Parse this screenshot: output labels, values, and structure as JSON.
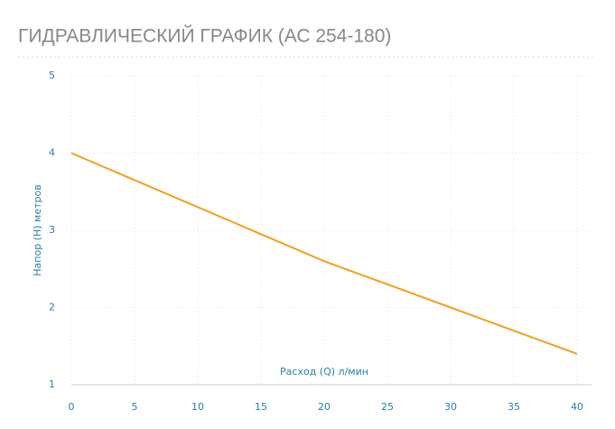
{
  "chart_data": {
    "type": "line",
    "title": "ГИДРАВЛИЧЕСКИЙ ГРАФИК (АС 254-180)",
    "x_label": "Расход (Q) л/мин",
    "y_label": "Напор (H) метров",
    "x": [
      0,
      5,
      10,
      15,
      20,
      25,
      30,
      35,
      40
    ],
    "series": [
      {
        "name": "АС 254-180",
        "color": "#f0a020",
        "values": [
          4.0,
          3.65,
          3.3,
          2.95,
          2.6,
          2.3,
          2.0,
          1.7,
          1.4
        ]
      }
    ],
    "xlim": [
      0,
      40
    ],
    "xticks": [
      0,
      5,
      10,
      15,
      20,
      25,
      30,
      35,
      40
    ],
    "ylim": [
      1,
      5
    ],
    "yticks": [
      1,
      2,
      3,
      4,
      5
    ],
    "grid": true
  }
}
